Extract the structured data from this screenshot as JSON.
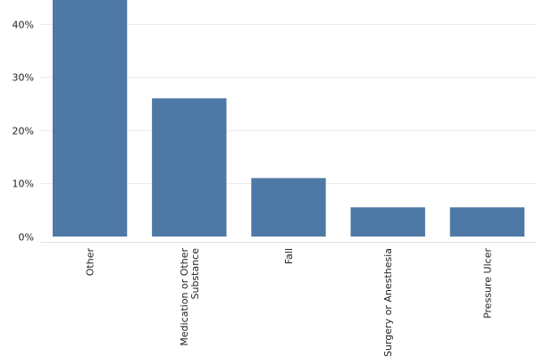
{
  "chart_data": {
    "type": "bar",
    "categories": [
      "Other",
      "Medication or Other Substance",
      "Fall",
      "Surgery or Anesthesia",
      "Pressure Ulcer"
    ],
    "category_label_lines": [
      [
        "Other"
      ],
      [
        "Medication or Other",
        "Substance"
      ],
      [
        "Fall"
      ],
      [
        "Surgery or Anesthesia"
      ],
      [
        "Pressure Ulcer"
      ]
    ],
    "values": [
      45,
      26,
      11,
      5.5,
      5.5
    ],
    "y_ticks": [
      0,
      10,
      20,
      30,
      40
    ],
    "y_tick_labels": [
      "0%",
      "10%",
      "20%",
      "30%",
      "40%"
    ],
    "ylim": [
      -1,
      44.5
    ],
    "grid": true,
    "title": "",
    "xlabel": "",
    "ylabel": "",
    "bar_color": "#4e79a7"
  }
}
